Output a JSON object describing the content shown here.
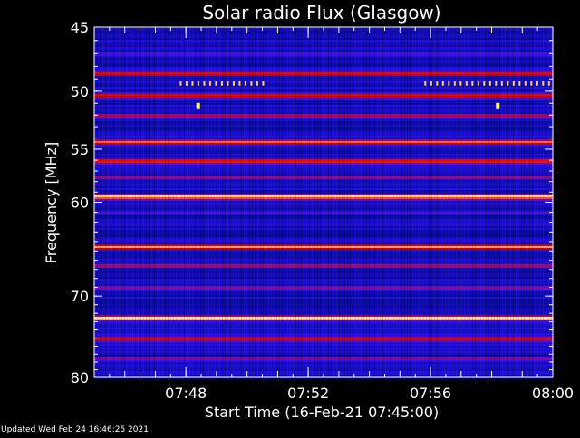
{
  "chart_data": {
    "type": "heatmap",
    "title": "Solar radio Flux (Glasgow)",
    "xlabel": "Start Time (16-Feb-21 07:45:00)",
    "ylabel": "Frequency [MHz]",
    "x_range_minutes": [
      "07:45",
      "08:00"
    ],
    "ylim": [
      45,
      80
    ],
    "y_reversed": true,
    "y_scale": "log",
    "x_ticks": [
      "07:48",
      "07:52",
      "07:56",
      "08:00"
    ],
    "y_ticks": [
      45,
      50,
      55,
      60,
      70,
      80
    ],
    "colormap": [
      "#000a8c",
      "#2c10f0",
      "#8a0f8f",
      "#c80008",
      "#ff1800",
      "#ffd070",
      "#fffbe0"
    ],
    "bands": [
      {
        "freq_mhz": 45.6,
        "intensity": 0.0
      },
      {
        "freq_mhz": 47.0,
        "intensity": 0.25
      },
      {
        "freq_mhz": 48.5,
        "intensity": 0.6
      },
      {
        "freq_mhz": 50.3,
        "intensity": 0.65
      },
      {
        "freq_mhz": 52.0,
        "intensity": 0.45
      },
      {
        "freq_mhz": 54.3,
        "intensity": 0.75
      },
      {
        "freq_mhz": 56.0,
        "intensity": 0.65
      },
      {
        "freq_mhz": 57.5,
        "intensity": 0.4
      },
      {
        "freq_mhz": 59.4,
        "intensity": 0.95
      },
      {
        "freq_mhz": 61.0,
        "intensity": 0.2
      },
      {
        "freq_mhz": 64.5,
        "intensity": 0.85
      },
      {
        "freq_mhz": 66.5,
        "intensity": 0.45
      },
      {
        "freq_mhz": 69.0,
        "intensity": 0.3
      },
      {
        "freq_mhz": 72.5,
        "intensity": 1.0
      },
      {
        "freq_mhz": 75.0,
        "intensity": 0.55
      },
      {
        "freq_mhz": 77.5,
        "intensity": 0.3
      },
      {
        "freq_mhz": 79.5,
        "intensity": 0.1
      }
    ],
    "bursts": [
      {
        "time": "07:48.4",
        "freq_mhz": 51.2
      },
      {
        "time": "07:58.2",
        "freq_mhz": 51.2
      }
    ]
  },
  "footer": {
    "updated": "Updated Wed Feb 24 16:46:25 2021"
  }
}
